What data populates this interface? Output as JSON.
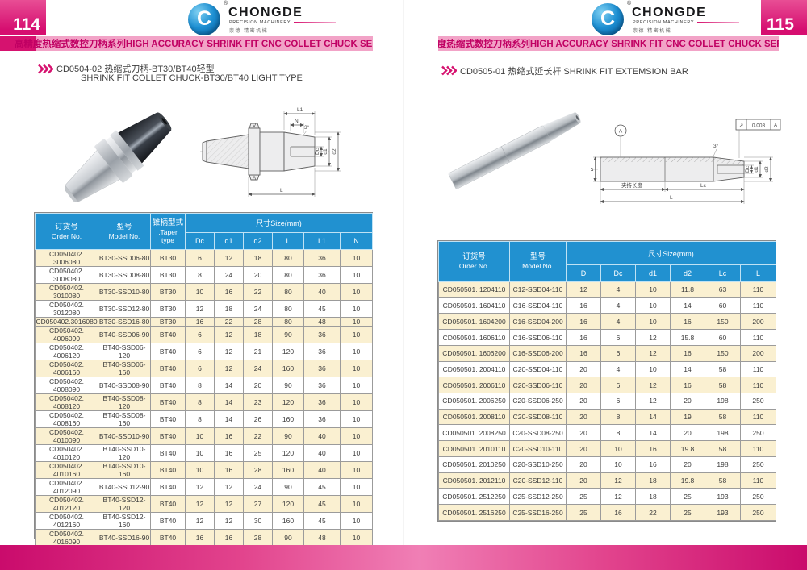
{
  "logo": {
    "brand": "CHONGDE",
    "tagline": "PRECISION MACHINERY",
    "chinese": "崇德 精密机械",
    "reg": "®",
    "monogram": "C"
  },
  "page_left": {
    "page_number": "114",
    "series_banner": "高精度热缩式数控刀柄系列HIGH ACCURACY SHRINK FIT CNC COLLET CHUCK SERIES",
    "section_title_line1": "CD0504-02 热缩式刀柄-BT30/BT40轻型",
    "section_title_line2": "SHRINK FIT COLLET CHUCK-BT30/BT40 LIGHT TYPE",
    "drawing": {
      "l1": "L1",
      "n": "N",
      "angle": "3°",
      "dc": "Dc",
      "d1": "d1",
      "d2": "d2",
      "l": "L"
    },
    "table": {
      "header": {
        "order_cn": "订货号",
        "order_en": "Order No.",
        "model_cn": "型号",
        "model_en": "Model No.",
        "taper_cn": "锥柄型式",
        "taper_en": ",Taper type",
        "size_group": "尺寸Size(mm)",
        "size_cols": [
          "Dc",
          "d1",
          "d2",
          "L",
          "L1",
          "N"
        ]
      },
      "rows": [
        [
          "CD050402. 3006080",
          "BT30-SSD06-80",
          "BT30",
          "6",
          "12",
          "18",
          "80",
          "36",
          "10"
        ],
        [
          "CD050402. 3008080",
          "BT30-SSD08-80",
          "BT30",
          "8",
          "24",
          "20",
          "80",
          "36",
          "10"
        ],
        [
          "CD050402. 3010080",
          "BT30-SSD10-80",
          "BT30",
          "10",
          "16",
          "22",
          "80",
          "40",
          "10"
        ],
        [
          "CD050402. 3012080",
          "BT30-SSD12-80",
          "BT30",
          "12",
          "18",
          "24",
          "80",
          "45",
          "10"
        ],
        [
          "CD050402.3016080",
          "BT30-SSD16-80",
          "BT30",
          "16",
          "22",
          "28",
          "80",
          "48",
          "10"
        ],
        [
          "CD050402. 4006090",
          "BT40-SSD06-90",
          "BT40",
          "6",
          "12",
          "18",
          "90",
          "36",
          "10"
        ],
        [
          "CD050402. 4006120",
          "BT40-SSD06-120",
          "BT40",
          "6",
          "12",
          "21",
          "120",
          "36",
          "10"
        ],
        [
          "CD050402. 4006160",
          "BT40-SSD06-160",
          "BT40",
          "6",
          "12",
          "24",
          "160",
          "36",
          "10"
        ],
        [
          "CD050402. 4008090",
          "BT40-SSD08-90",
          "BT40",
          "8",
          "14",
          "20",
          "90",
          "36",
          "10"
        ],
        [
          "CD050402. 4008120",
          "BT40-SSD08-120",
          "BT40",
          "8",
          "14",
          "23",
          "120",
          "36",
          "10"
        ],
        [
          "CD050402. 4008160",
          "BT40-SSD08-160",
          "BT40",
          "8",
          "14",
          "26",
          "160",
          "36",
          "10"
        ],
        [
          "CD050402. 4010090",
          "BT40-SSD10-90",
          "BT40",
          "10",
          "16",
          "22",
          "90",
          "40",
          "10"
        ],
        [
          "CD050402. 4010120",
          "BT40-SSD10-120",
          "BT40",
          "10",
          "16",
          "25",
          "120",
          "40",
          "10"
        ],
        [
          "CD050402. 4010160",
          "BT40-SSD10-160",
          "BT40",
          "10",
          "16",
          "28",
          "160",
          "40",
          "10"
        ],
        [
          "CD050402. 4012090",
          "BT40-SSD12-90",
          "BT40",
          "12",
          "12",
          "24",
          "90",
          "45",
          "10"
        ],
        [
          "CD050402. 4012120",
          "BT40-SSD12-120",
          "BT40",
          "12",
          "12",
          "27",
          "120",
          "45",
          "10"
        ],
        [
          "CD050402. 4012160",
          "BT40-SSD12-160",
          "BT40",
          "12",
          "12",
          "30",
          "160",
          "45",
          "10"
        ],
        [
          "CD050402. 4016090",
          "BT40-SSD16-90",
          "BT40",
          "16",
          "16",
          "28",
          "90",
          "48",
          "10"
        ],
        [
          "CD050402. 4016120",
          "BT40-SSD16-120",
          "BT40",
          "16",
          "16",
          "31",
          "120",
          "48",
          "10"
        ],
        [
          "CD050402. 4016160",
          "BT40-SSD16-160",
          "BT40",
          "16",
          "16",
          "34",
          "160",
          "48",
          "10"
        ]
      ],
      "cream_rows": [
        0,
        2,
        4,
        5,
        7,
        9,
        11,
        13,
        15,
        17,
        19
      ]
    }
  },
  "page_right": {
    "page_number": "115",
    "series_banner": "高精度热缩式数控刀柄系列HIGH ACCURACY SHRINK FIT CNC COLLET CHUCK SERIES",
    "section_title": "CD0505-01 热缩式延长杆  SHRINK FIT EXTEMSION BAR",
    "drawing": {
      "datum": "A",
      "tol_symbol": "↗",
      "tol_value": "0.003",
      "tol_ref": "A",
      "angle": "3°",
      "d": "D",
      "dc": "Dc",
      "d1": "d1",
      "d2": "d2",
      "clamp_len": "夹持长度",
      "lc": "Lc",
      "l": "L"
    },
    "table": {
      "header": {
        "order_cn": "订货号",
        "order_en": "Order No.",
        "model_cn": "型号",
        "model_en": "Model No.",
        "size_group": "尺寸Size(mm)",
        "size_cols": [
          "D",
          "Dc",
          "d1",
          "d2",
          "Lc",
          "L"
        ]
      },
      "rows": [
        [
          "CD050501. 1204110",
          "C12-SSD04-110",
          "12",
          "4",
          "10",
          "11.8",
          "63",
          "110"
        ],
        [
          "CD050501. 1604110",
          "C16-SSD04-110",
          "16",
          "4",
          "10",
          "14",
          "60",
          "110"
        ],
        [
          "CD050501. 1604200",
          "C16-SSD04-200",
          "16",
          "4",
          "10",
          "16",
          "150",
          "200"
        ],
        [
          "CD050501. 1606110",
          "C16-SSD06-110",
          "16",
          "6",
          "12",
          "15.8",
          "60",
          "110"
        ],
        [
          "CD050501. 1606200",
          "C16-SSD06-200",
          "16",
          "6",
          "12",
          "16",
          "150",
          "200"
        ],
        [
          "CD050501. 2004110",
          "C20-SSD04-110",
          "20",
          "4",
          "10",
          "14",
          "58",
          "110"
        ],
        [
          "CD050501. 2006110",
          "C20-SSD06-110",
          "20",
          "6",
          "12",
          "16",
          "58",
          "110"
        ],
        [
          "CD050501. 2006250",
          "C20-SSD06-250",
          "20",
          "6",
          "12",
          "20",
          "198",
          "250"
        ],
        [
          "CD050501. 2008110",
          "C20-SSD08-110",
          "20",
          "8",
          "14",
          "19",
          "58",
          "110"
        ],
        [
          "CD050501. 2008250",
          "C20-SSD08-250",
          "20",
          "8",
          "14",
          "20",
          "198",
          "250"
        ],
        [
          "CD050501. 2010110",
          "C20-SSD10-110",
          "20",
          "10",
          "16",
          "19.8",
          "58",
          "110"
        ],
        [
          "CD050501. 2010250",
          "C20-SSD10-250",
          "20",
          "10",
          "16",
          "20",
          "198",
          "250"
        ],
        [
          "CD050501. 2012110",
          "C20-SSD12-110",
          "20",
          "12",
          "18",
          "19.8",
          "58",
          "110"
        ],
        [
          "CD050501. 2512250",
          "C25-SSD12-250",
          "25",
          "12",
          "18",
          "25",
          "193",
          "250"
        ],
        [
          "CD050501. 2516250",
          "C25-SSD16-250",
          "25",
          "16",
          "22",
          "25",
          "193",
          "250"
        ]
      ],
      "cream_rows": [
        0,
        2,
        4,
        6,
        8,
        10,
        12,
        14
      ]
    }
  },
  "colors": {
    "magenta": "#d6126f",
    "pink": "#f2a3c7",
    "banner_text": "#c00063",
    "table_header_blue": "#2191d0",
    "row_cream": "#faf0d1"
  }
}
